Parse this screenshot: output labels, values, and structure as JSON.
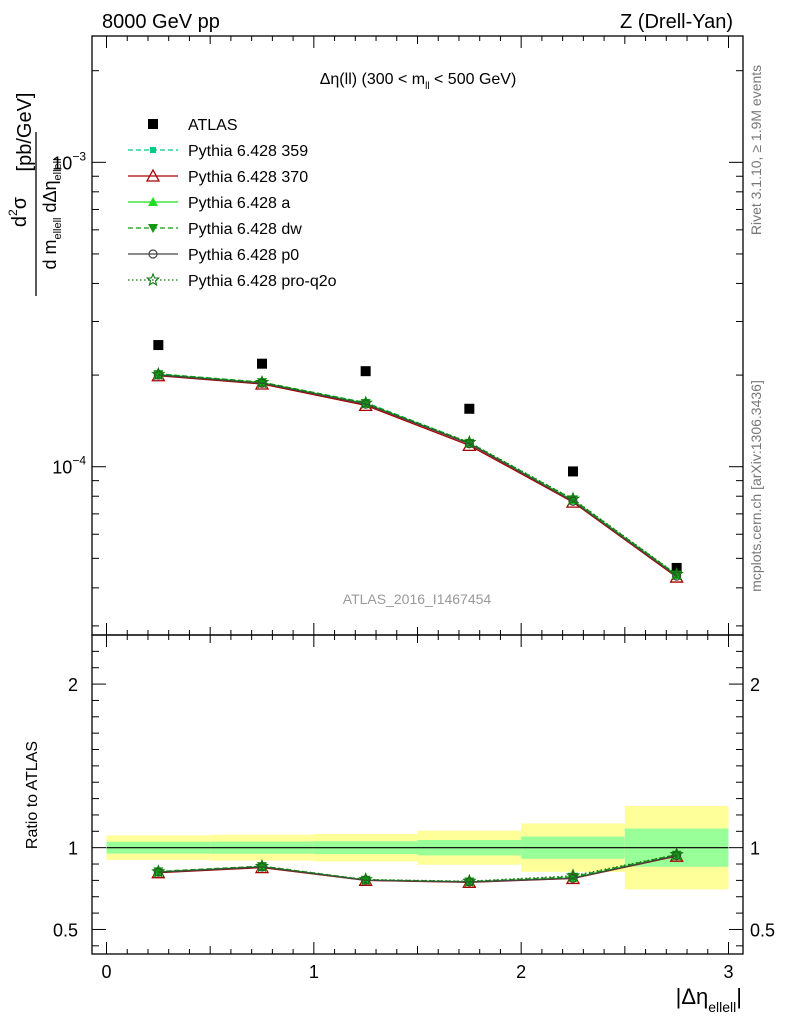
{
  "header": {
    "left": "8000 GeV pp",
    "right": "Z (Drell-Yan)"
  },
  "side_labels": {
    "rivet": "Rivet 3.1.10, ≥ 1.9M events",
    "mcplots": "mcplots.cern.ch [arXiv:1306.3436]"
  },
  "watermark": "ATLAS_2016_I1467454",
  "colors": {
    "band_inner": "#99ff99",
    "band_outer": "#ffff99",
    "data": "#000000"
  },
  "chart_data": [
    {
      "panel": "main",
      "type": "scatter",
      "title": "Δη(ll) (300 < m_ll < 500 GeV)",
      "title_parts": {
        "pre": "Δη(ll) (300 < m",
        "sub": "ll",
        "post": " < 500 GeV)"
      },
      "ylabel": "d²σ / d m_ellell dΔη_ellell [pb/GeV]",
      "ylabel_parts": {
        "unit": "[pb/GeV]",
        "num": "d",
        "num_sup": "2",
        "num_sigma": "σ",
        "den_a": "d m",
        "den_a_sub": "ellell",
        "den_b": " dΔη",
        "den_b_sub": "ellell"
      },
      "yscale": "log",
      "ylim": [
        2.8e-05,
        0.0026
      ],
      "xlim": [
        -0.07,
        3.07
      ],
      "yticks": [
        {
          "value": 0.0001,
          "base": "10",
          "exp": "−4"
        },
        {
          "value": 0.001,
          "base": "10",
          "exp": "−3"
        }
      ],
      "x": [
        0.25,
        0.75,
        1.25,
        1.75,
        2.25,
        2.75
      ],
      "series": [
        {
          "name": "ATLAS",
          "label": "ATLAS",
          "color": "#000000",
          "marker": "square",
          "line": "none",
          "values": [
            0.000251,
            0.000218,
            0.000206,
            0.000155,
            9.65e-05,
            4.65e-05
          ]
        },
        {
          "name": "Pythia 6.428 359",
          "label": "Pythia 6.428 359",
          "color": "#00cc88",
          "marker": "square-small",
          "line": "dashed",
          "values": [
            0.000202,
            0.0001893,
            0.0001625,
            0.00012,
            7.79e-05,
            4.4e-05
          ]
        },
        {
          "name": "Pythia 6.428 370",
          "label": "Pythia 6.428 370",
          "color": "#aa0000",
          "marker": "triangle-open",
          "line": "solid",
          "values": [
            0.000199,
            0.000187,
            0.000159,
            0.0001175,
            7.65e-05,
            4.34e-05
          ]
        },
        {
          "name": "Pythia 6.428 a",
          "label": "Pythia 6.428 a",
          "color": "#22dd22",
          "marker": "triangle",
          "line": "solid",
          "values": [
            0.000201,
            0.000189,
            0.0001615,
            0.0001195,
            7.76e-05,
            4.41e-05
          ]
        },
        {
          "name": "Pythia 6.428 dw",
          "label": "Pythia 6.428 dw",
          "color": "#119911",
          "marker": "triangle-down",
          "line": "dashed",
          "values": [
            0.0002015,
            0.0001896,
            0.000162,
            0.0001198,
            7.81e-05,
            4.42e-05
          ]
        },
        {
          "name": "Pythia 6.428 p0",
          "label": "Pythia 6.428 p0",
          "color": "#444444",
          "marker": "circle-open",
          "line": "solid",
          "values": [
            0.0002,
            0.000188,
            0.0001605,
            0.000119,
            7.7e-05,
            4.37e-05
          ]
        },
        {
          "name": "Pythia 6.428 pro-q2o",
          "label": "Pythia 6.428 pro-q2o",
          "color": "#117711",
          "marker": "star",
          "line": "dotted",
          "values": [
            0.0002012,
            0.0001892,
            0.0001618,
            0.0001202,
            7.83e-05,
            4.43e-05
          ]
        }
      ]
    },
    {
      "panel": "ratio",
      "type": "line",
      "ylabel": "Ratio to ATLAS",
      "xlabel": "|Δη_ellell|",
      "xlabel_parts": {
        "pre": "|Δη",
        "sub": "ellell",
        "post": "|"
      },
      "ylim": [
        0.35,
        2.3
      ],
      "xlim": [
        -0.07,
        3.07
      ],
      "xticks": [
        {
          "value": 0,
          "label": "0"
        },
        {
          "value": 1,
          "label": "1"
        },
        {
          "value": 2,
          "label": "2"
        },
        {
          "value": 3,
          "label": "3"
        }
      ],
      "yticks": [
        {
          "value": 0.5,
          "label": "0.5"
        },
        {
          "value": 1,
          "label": "1"
        },
        {
          "value": 2,
          "label": "2"
        }
      ],
      "bins": [
        {
          "lo": 0.0,
          "hi": 0.5,
          "inner": [
            0.964,
            1.036
          ],
          "outer": [
            0.925,
            1.075
          ]
        },
        {
          "lo": 0.5,
          "hi": 1.0,
          "inner": [
            0.963,
            1.037
          ],
          "outer": [
            0.921,
            1.079
          ]
        },
        {
          "lo": 1.0,
          "hi": 1.5,
          "inner": [
            0.961,
            1.039
          ],
          "outer": [
            0.916,
            1.084
          ]
        },
        {
          "lo": 1.5,
          "hi": 2.0,
          "inner": [
            0.953,
            1.047
          ],
          "outer": [
            0.896,
            1.104
          ]
        },
        {
          "lo": 2.0,
          "hi": 2.5,
          "inner": [
            0.932,
            1.068
          ],
          "outer": [
            0.852,
            1.148
          ]
        },
        {
          "lo": 2.5,
          "hi": 3.0,
          "inner": [
            0.883,
            1.117
          ],
          "outer": [
            0.745,
            1.255
          ]
        }
      ],
      "x": [
        0.25,
        0.75,
        1.25,
        1.75,
        2.25,
        2.75
      ],
      "series": [
        {
          "name": "Pythia 6.428 359",
          "color": "#00cc88",
          "marker": "square-small",
          "line": "dashed",
          "values": [
            0.852,
            0.88,
            0.801,
            0.79,
            0.82,
            0.955
          ]
        },
        {
          "name": "Pythia 6.428 370",
          "color": "#aa0000",
          "marker": "triangle-open",
          "line": "solid",
          "values": [
            0.847,
            0.878,
            0.8,
            0.788,
            0.812,
            0.948
          ]
        },
        {
          "name": "Pythia 6.428 a",
          "color": "#22dd22",
          "marker": "triangle",
          "line": "solid",
          "values": [
            0.852,
            0.884,
            0.802,
            0.791,
            0.816,
            0.953
          ]
        },
        {
          "name": "Pythia 6.428 dw",
          "color": "#119911",
          "marker": "triangle-down",
          "line": "dashed",
          "values": [
            0.855,
            0.887,
            0.804,
            0.793,
            0.822,
            0.957
          ]
        },
        {
          "name": "Pythia 6.428 p0",
          "color": "#444444",
          "marker": "circle-open",
          "line": "solid",
          "values": [
            0.85,
            0.882,
            0.801,
            0.79,
            0.813,
            0.951
          ]
        },
        {
          "name": "Pythia 6.428 pro-q2o",
          "color": "#117711",
          "marker": "star",
          "line": "dotted",
          "values": [
            0.853,
            0.886,
            0.805,
            0.795,
            0.828,
            0.958
          ]
        }
      ]
    }
  ]
}
